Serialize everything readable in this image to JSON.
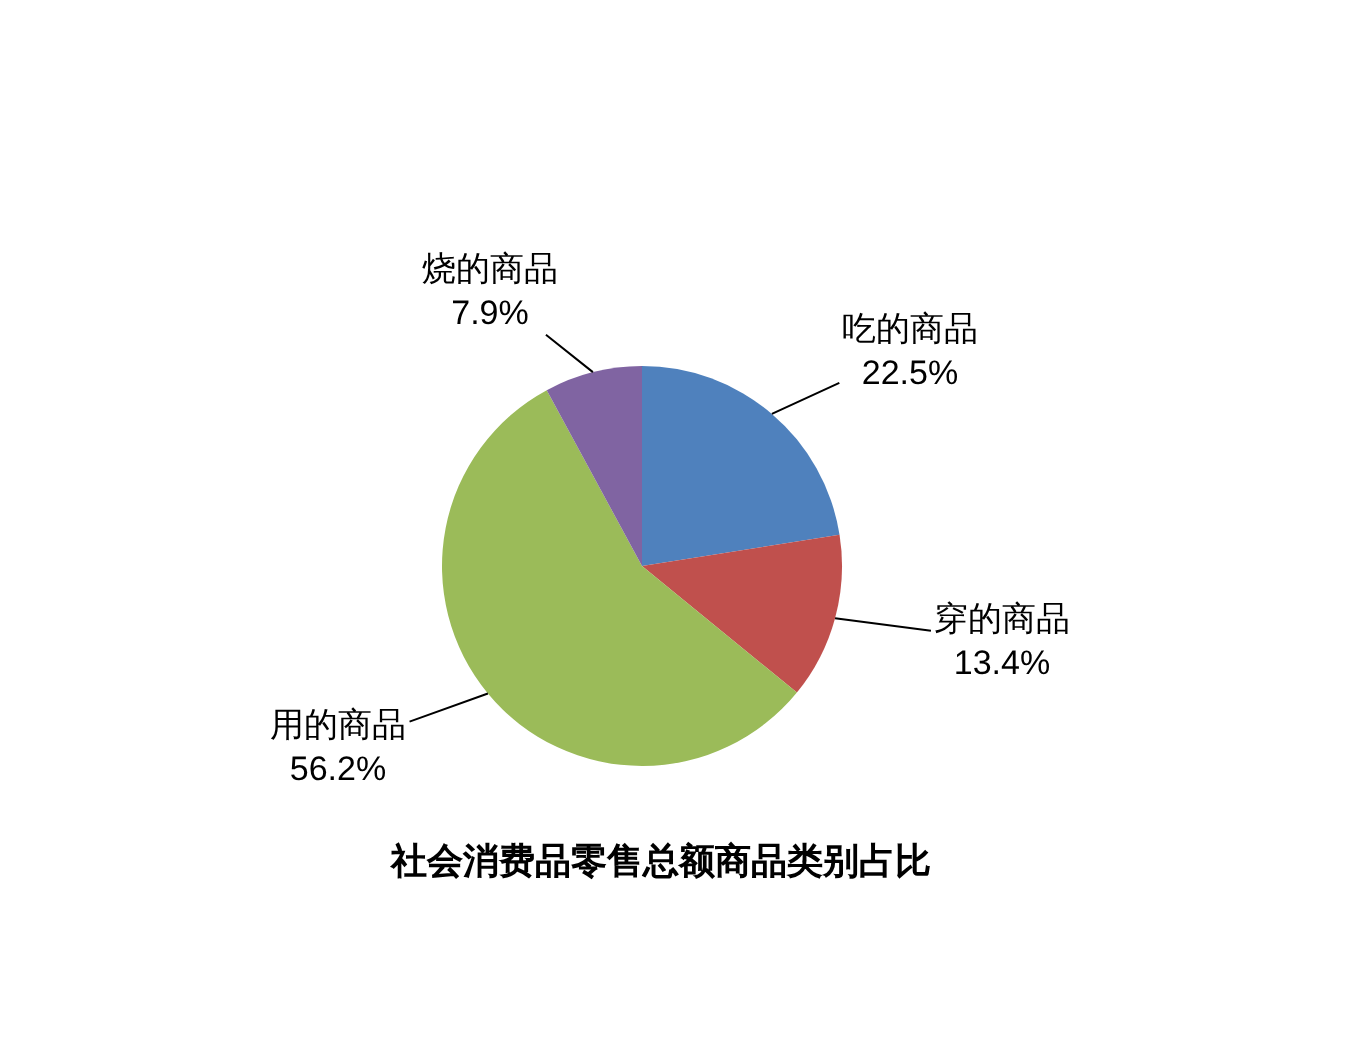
{
  "chart_data": {
    "type": "pie",
    "title": "社会消费品零售总额商品类别占比",
    "categories": [
      "吃的商品",
      "穿的商品",
      "用的商品",
      "烧的商品"
    ],
    "values": [
      22.5,
      13.4,
      56.2,
      7.9
    ],
    "value_labels": [
      "22.5%",
      "13.4%",
      "56.2%",
      "7.9%"
    ],
    "colors": [
      "#4f81bd",
      "#c0504d",
      "#9bbb59",
      "#8064a2"
    ]
  }
}
